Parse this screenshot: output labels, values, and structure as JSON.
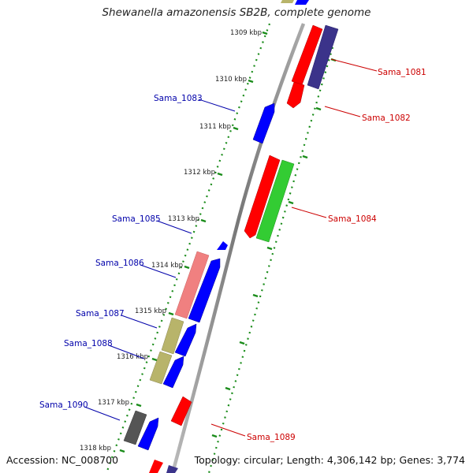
{
  "title": "Shewanella amazonensis SB2B, complete genome",
  "footer": {
    "accession": "Accession: NC_008700",
    "topology": "Topology: circular; Length: 4,306,142 bp; Genes: 3,774"
  },
  "ticks": [
    "1309 kbp",
    "1310 kbp",
    "1311 kbp",
    "1312 kbp",
    "1313 kbp",
    "1314 kbp",
    "1315 kbp",
    "1316 kbp",
    "1317 kbp",
    "1318 kbp"
  ],
  "genes_right": [
    {
      "label": "Sama_1081",
      "color": "#cc0000"
    },
    {
      "label": "Sama_1082",
      "color": "#cc0000"
    },
    {
      "label": "Sama_1084",
      "color": "#cc0000"
    },
    {
      "label": "Sama_1089",
      "color": "#cc0000"
    }
  ],
  "genes_left": [
    {
      "label": "Sama_1083",
      "color": "#0000aa"
    },
    {
      "label": "Sama_1085",
      "color": "#0000aa"
    },
    {
      "label": "Sama_1086",
      "color": "#0000aa"
    },
    {
      "label": "Sama_1087",
      "color": "#0000aa"
    },
    {
      "label": "Sama_1088",
      "color": "#0000aa"
    },
    {
      "label": "Sama_1090",
      "color": "#0000aa"
    }
  ],
  "colors": {
    "red": "#ff0000",
    "blue": "#0000ff",
    "navy": "#3b338a",
    "green": "#33cc33",
    "pink": "#f08080",
    "olive": "#b8b46a",
    "gray": "#555555",
    "dots": "#1a8c1a",
    "backbone": "#888888"
  }
}
